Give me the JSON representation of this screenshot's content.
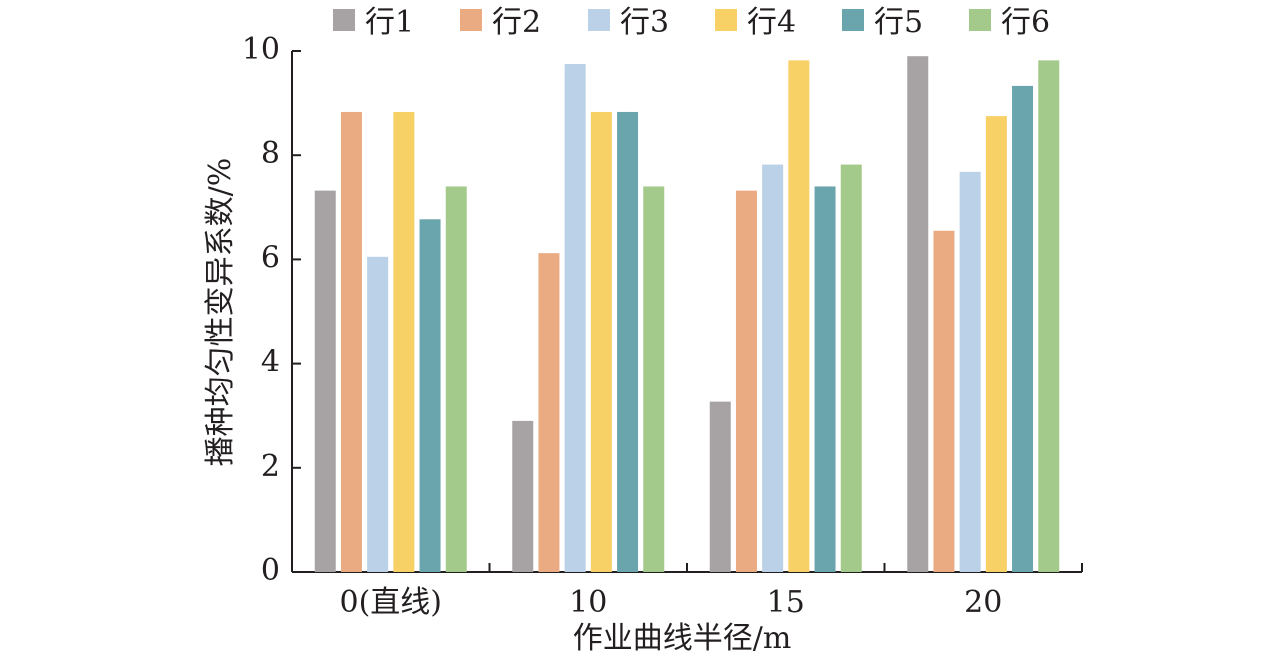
{
  "chart_data": {
    "type": "bar",
    "categories": [
      "0(直线)",
      "10",
      "15",
      "20"
    ],
    "series": [
      {
        "name": "行1",
        "color": "#a7a3a4",
        "values": [
          7.32,
          2.9,
          3.27,
          9.9
        ]
      },
      {
        "name": "行2",
        "color": "#eaab82",
        "values": [
          8.83,
          6.12,
          7.32,
          6.55
        ]
      },
      {
        "name": "行3",
        "color": "#bad1e7",
        "values": [
          6.05,
          9.75,
          7.82,
          7.68
        ]
      },
      {
        "name": "行4",
        "color": "#f7d066",
        "values": [
          8.83,
          8.83,
          9.82,
          8.75
        ]
      },
      {
        "name": "行5",
        "color": "#6aa4ad",
        "values": [
          6.77,
          8.83,
          7.4,
          9.33
        ]
      },
      {
        "name": "行6",
        "color": "#a3ca8a",
        "values": [
          7.4,
          7.4,
          7.82,
          9.82
        ]
      }
    ],
    "ylim": [
      0,
      10
    ],
    "yticks": [
      "0",
      "2",
      "4",
      "6",
      "8",
      "10"
    ],
    "xlabel": "作业曲线半径/m",
    "ylabel": "播种均匀性变异系数/%",
    "legend_position": "top",
    "grid": false
  }
}
